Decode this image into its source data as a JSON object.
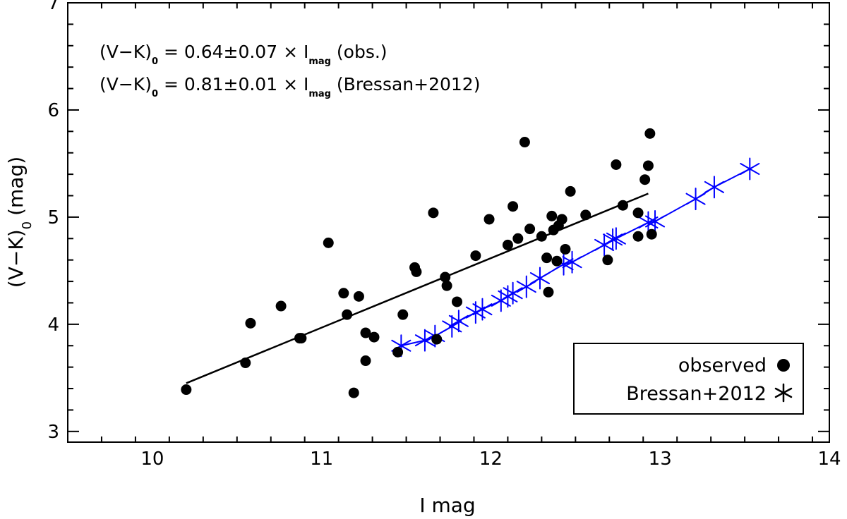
{
  "chart_data": {
    "type": "scatter",
    "title": "",
    "xlabel": "I mag",
    "ylabel_main": "(V−K)",
    "ylabel_sub": "0",
    "ylabel_unit": "(mag)",
    "xlim": [
      9.5,
      14
    ],
    "ylim": [
      2.9,
      7
    ],
    "x_ticks": [
      10,
      11,
      12,
      13,
      14
    ],
    "y_ticks": [
      3,
      4,
      5,
      6,
      7
    ],
    "x_minor_step": 0.2,
    "y_minor_step": 0.2,
    "grid": false,
    "legend_position": "bottom-right",
    "series": [
      {
        "name": "observed",
        "marker": "filled-circle",
        "color": "#000000",
        "points": [
          [
            10.2,
            3.39
          ],
          [
            10.55,
            3.64
          ],
          [
            10.58,
            4.01
          ],
          [
            10.76,
            4.17
          ],
          [
            10.87,
            3.87
          ],
          [
            10.88,
            3.87
          ],
          [
            11.04,
            4.76
          ],
          [
            11.13,
            4.29
          ],
          [
            11.15,
            4.09
          ],
          [
            11.19,
            3.36
          ],
          [
            11.22,
            4.26
          ],
          [
            11.26,
            3.92
          ],
          [
            11.26,
            3.66
          ],
          [
            11.31,
            3.88
          ],
          [
            11.45,
            3.74
          ],
          [
            11.48,
            4.09
          ],
          [
            11.55,
            4.53
          ],
          [
            11.56,
            4.49
          ],
          [
            11.66,
            5.04
          ],
          [
            11.68,
            3.86
          ],
          [
            11.73,
            4.44
          ],
          [
            11.74,
            4.36
          ],
          [
            11.8,
            4.21
          ],
          [
            11.91,
            4.64
          ],
          [
            11.99,
            4.98
          ],
          [
            12.1,
            4.74
          ],
          [
            12.13,
            5.1
          ],
          [
            12.16,
            4.8
          ],
          [
            12.2,
            5.7
          ],
          [
            12.23,
            4.89
          ],
          [
            12.3,
            4.82
          ],
          [
            12.33,
            4.62
          ],
          [
            12.34,
            4.3
          ],
          [
            12.36,
            5.01
          ],
          [
            12.37,
            4.88
          ],
          [
            12.39,
            4.59
          ],
          [
            12.4,
            4.92
          ],
          [
            12.42,
            4.98
          ],
          [
            12.44,
            4.7
          ],
          [
            12.47,
            5.24
          ],
          [
            12.56,
            5.02
          ],
          [
            12.69,
            4.6
          ],
          [
            12.74,
            5.49
          ],
          [
            12.78,
            5.11
          ],
          [
            12.87,
            5.04
          ],
          [
            12.87,
            4.82
          ],
          [
            12.91,
            5.35
          ],
          [
            12.93,
            5.48
          ],
          [
            12.94,
            5.78
          ],
          [
            12.95,
            4.84
          ]
        ]
      },
      {
        "name": "Bressan+2012",
        "marker": "asterisk",
        "color": "#0000ff",
        "points": [
          [
            11.47,
            3.8
          ],
          [
            11.61,
            3.85
          ],
          [
            11.67,
            3.89
          ],
          [
            11.77,
            3.98
          ],
          [
            11.81,
            4.03
          ],
          [
            11.91,
            4.11
          ],
          [
            11.95,
            4.14
          ],
          [
            12.06,
            4.22
          ],
          [
            12.1,
            4.26
          ],
          [
            12.13,
            4.29
          ],
          [
            12.21,
            4.35
          ],
          [
            12.29,
            4.43
          ],
          [
            12.43,
            4.56
          ],
          [
            12.48,
            4.58
          ],
          [
            12.67,
            4.74
          ],
          [
            12.72,
            4.79
          ],
          [
            12.74,
            4.8
          ],
          [
            12.93,
            4.95
          ],
          [
            12.97,
            4.96
          ],
          [
            13.21,
            5.17
          ],
          [
            13.32,
            5.28
          ],
          [
            13.53,
            5.45
          ]
        ]
      }
    ],
    "fit_line": {
      "name": "observed fit",
      "color": "#000000",
      "x": [
        10.2,
        12.93
      ],
      "y": [
        3.45,
        5.22
      ]
    },
    "annotations": [
      {
        "main": "(V−K)",
        "sub": "0",
        "eq": " = 0.64±0.07 × I",
        "sub2": "mag",
        "tail": " (obs.)"
      },
      {
        "main": "(V−K)",
        "sub": "0",
        "eq": " = 0.81±0.01 × I",
        "sub2": "mag",
        "tail": " (Bressan+2012)"
      }
    ]
  }
}
